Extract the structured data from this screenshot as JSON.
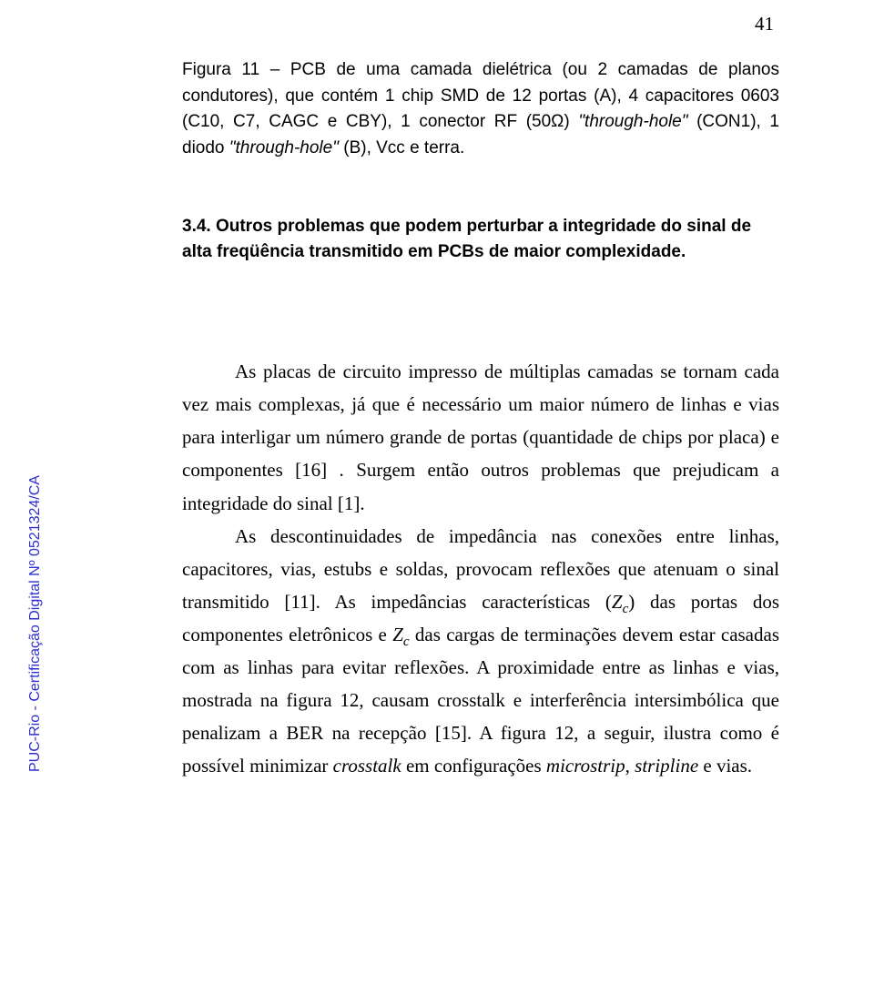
{
  "pageNumber": "41",
  "caption": {
    "part1": "Figura 11 – PCB de uma camada dielétrica (ou 2 camadas de planos condutores), que contém 1 chip SMD de 12 portas (A), 4 capacitores 0603 (C10, C7, CAGC e CBY), 1 conector RF (50Ω) ",
    "italic1": "\"through-hole\"",
    "part2": " (CON1), 1 diodo ",
    "italic2": "\"through-hole\"",
    "part3": " (B), Vcc e terra."
  },
  "heading": "3.4. Outros problemas que podem perturbar a integridade do sinal de alta freqüência transmitido em PCBs de maior complexidade.",
  "para1": "As placas de circuito impresso de múltiplas camadas se tornam cada vez mais complexas, já que é necessário um maior número de linhas e vias para interligar um número grande de portas (quantidade de chips por placa) e componentes [16] . Surgem então outros problemas que prejudicam a integridade do sinal [1].",
  "para2": {
    "t1": "As descontinuidades de impedância nas conexões entre linhas, capacitores, vias, estubs e soldas, provocam reflexões que atenuam o sinal transmitido [11]. As impedâncias características (",
    "zc1_base": "Z",
    "zc1_sub": "c",
    "t2": ") das portas dos componentes eletrônicos e ",
    "zc2_base": "Z",
    "zc2_sub": "c",
    "t3": " das cargas de terminações devem estar casadas com as linhas para evitar reflexões. A proximidade entre as linhas e vias, mostrada na figura 12, causam crosstalk e interferência intersimbólica que penalizam a BER na recepção [15]. A figura 12, a seguir, ilustra como é possível minimizar ",
    "it1": "crosstalk",
    "t4": " em configurações ",
    "it2": "microstrip",
    "t5": ", ",
    "it3": "stripline",
    "t6": " e vias."
  },
  "sideLabel": "PUC-Rio - Certificação Digital Nº 0521324/CA"
}
